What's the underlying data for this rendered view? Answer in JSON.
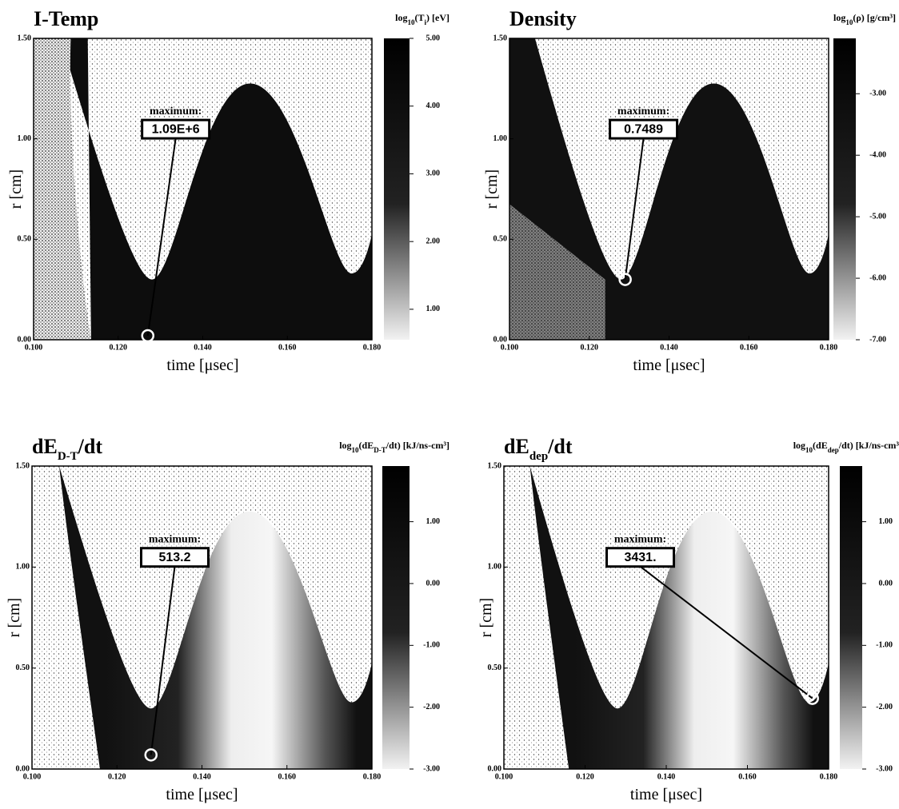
{
  "chart_data": [
    {
      "type": "heatmap",
      "title": [
        {
          "text": "I-Temp"
        }
      ],
      "colorbar_label": [
        {
          "text": "log"
        },
        {
          "text": "10",
          "sub": true
        },
        {
          "text": "(T"
        },
        {
          "text": "i",
          "sub": true
        },
        {
          "text": ") [eV]"
        }
      ],
      "xlabel": "time [μsec]",
      "ylabel": "r [cm]",
      "xlim": [
        0.1,
        0.18
      ],
      "ylim": [
        0,
        1.5
      ],
      "xticks": [
        {
          "value": 0.1,
          "label": "0.100"
        },
        {
          "value": 0.12,
          "label": "0.120"
        },
        {
          "value": 0.14,
          "label": "0.140"
        },
        {
          "value": 0.16,
          "label": "0.160"
        },
        {
          "value": 0.18,
          "label": "0.180"
        }
      ],
      "yticks": [
        {
          "value": 0,
          "label": "0.00"
        },
        {
          "value": 0.5,
          "label": "0.50"
        },
        {
          "value": 1,
          "label": "1.00"
        },
        {
          "value": 1.5,
          "label": "1.50"
        }
      ],
      "clim": [
        0.55,
        5.0
      ],
      "cticks": [
        {
          "value": 1,
          "label": "1.00"
        },
        {
          "value": 2,
          "label": "2.00"
        },
        {
          "value": 3,
          "label": "3.00"
        },
        {
          "value": 4,
          "label": "4.00"
        },
        {
          "value": 5,
          "label": "5.00"
        }
      ],
      "annotation": "maximum:",
      "max_label": "1.09E+6",
      "max_point": {
        "x": 0.127,
        "y": 0.02
      }
    },
    {
      "type": "heatmap",
      "title": [
        {
          "text": "Density"
        }
      ],
      "colorbar_label": [
        {
          "text": "log"
        },
        {
          "text": "10",
          "sub": true
        },
        {
          "text": "(ρ)  [g/cm³]"
        }
      ],
      "xlabel": "time [μsec]",
      "ylabel": "r [cm]",
      "xlim": [
        0.1,
        0.18
      ],
      "ylim": [
        0,
        1.5
      ],
      "xticks": [
        {
          "value": 0.1,
          "label": "0.100"
        },
        {
          "value": 0.12,
          "label": "0.120"
        },
        {
          "value": 0.14,
          "label": "0.140"
        },
        {
          "value": 0.16,
          "label": "0.160"
        },
        {
          "value": 0.18,
          "label": "0.180"
        }
      ],
      "yticks": [
        {
          "value": 0,
          "label": "0.00"
        },
        {
          "value": 0.5,
          "label": "0.50"
        },
        {
          "value": 1,
          "label": "1.00"
        },
        {
          "value": 1.5,
          "label": "1.50"
        }
      ],
      "clim": [
        -7,
        -2.1
      ],
      "cticks": [
        {
          "value": -3,
          "label": "-3.00"
        },
        {
          "value": -4,
          "label": "-4.00"
        },
        {
          "value": -5,
          "label": "-5.00"
        },
        {
          "value": -6,
          "label": "-6.00"
        },
        {
          "value": -7,
          "label": "-7.00"
        }
      ],
      "annotation": "maximum:",
      "max_label": "0.7489",
      "max_point": {
        "x": 0.129,
        "y": 0.3
      }
    },
    {
      "type": "heatmap",
      "title": [
        {
          "text": "dE"
        },
        {
          "text": "D-T",
          "sub": true
        },
        {
          "text": "/dt"
        }
      ],
      "colorbar_label": [
        {
          "text": "log"
        },
        {
          "text": "10",
          "sub": true
        },
        {
          "text": "(dE"
        },
        {
          "text": "D-T",
          "sub": true
        },
        {
          "text": "/dt) [kJ/ns-cm³]"
        }
      ],
      "xlabel": "time [μsec]",
      "ylabel": "r [cm]",
      "xlim": [
        0.1,
        0.18
      ],
      "ylim": [
        0,
        1.5
      ],
      "xticks": [
        {
          "value": 0.1,
          "label": "0.100"
        },
        {
          "value": 0.12,
          "label": "0.120"
        },
        {
          "value": 0.14,
          "label": "0.140"
        },
        {
          "value": 0.16,
          "label": "0.160"
        },
        {
          "value": 0.18,
          "label": "0.180"
        }
      ],
      "yticks": [
        {
          "value": 0,
          "label": "0.00"
        },
        {
          "value": 0.5,
          "label": "0.50"
        },
        {
          "value": 1,
          "label": "1.00"
        },
        {
          "value": 1.5,
          "label": "1.50"
        }
      ],
      "clim": [
        -3,
        1.9
      ],
      "cticks": [
        {
          "value": 1,
          "label": "1.00"
        },
        {
          "value": 0,
          "label": "0.00"
        },
        {
          "value": -1,
          "label": "-1.00"
        },
        {
          "value": -2,
          "label": "-2.00"
        },
        {
          "value": -3,
          "label": "-3.00"
        }
      ],
      "annotation": "maximum:",
      "max_label": "513.2",
      "max_point": {
        "x": 0.128,
        "y": 0.07
      }
    },
    {
      "type": "heatmap",
      "title": [
        {
          "text": "dE"
        },
        {
          "text": "dep",
          "sub": true
        },
        {
          "text": "/dt"
        }
      ],
      "colorbar_label": [
        {
          "text": "log"
        },
        {
          "text": "10",
          "sub": true
        },
        {
          "text": "(dE"
        },
        {
          "text": "dep",
          "sub": true
        },
        {
          "text": "/dt) [kJ/ns-cm³]"
        }
      ],
      "xlabel": "time [μsec]",
      "ylabel": "r [cm]",
      "xlim": [
        0.1,
        0.18
      ],
      "ylim": [
        0,
        1.5
      ],
      "xticks": [
        {
          "value": 0.1,
          "label": "0.100"
        },
        {
          "value": 0.12,
          "label": "0.120"
        },
        {
          "value": 0.14,
          "label": "0.140"
        },
        {
          "value": 0.16,
          "label": "0.160"
        },
        {
          "value": 0.18,
          "label": "0.180"
        }
      ],
      "yticks": [
        {
          "value": 0,
          "label": "0.00"
        },
        {
          "value": 0.5,
          "label": "0.50"
        },
        {
          "value": 1,
          "label": "1.00"
        },
        {
          "value": 1.5,
          "label": "1.50"
        }
      ],
      "clim": [
        -3,
        1.9
      ],
      "cticks": [
        {
          "value": 1,
          "label": "1.00"
        },
        {
          "value": 0,
          "label": "0.00"
        },
        {
          "value": -1,
          "label": "-1.00"
        },
        {
          "value": -2,
          "label": "-2.00"
        },
        {
          "value": -3,
          "label": "-3.00"
        }
      ],
      "annotation": "maximum:",
      "max_label": "3431.",
      "max_point": {
        "x": 0.176,
        "y": 0.35
      }
    }
  ]
}
